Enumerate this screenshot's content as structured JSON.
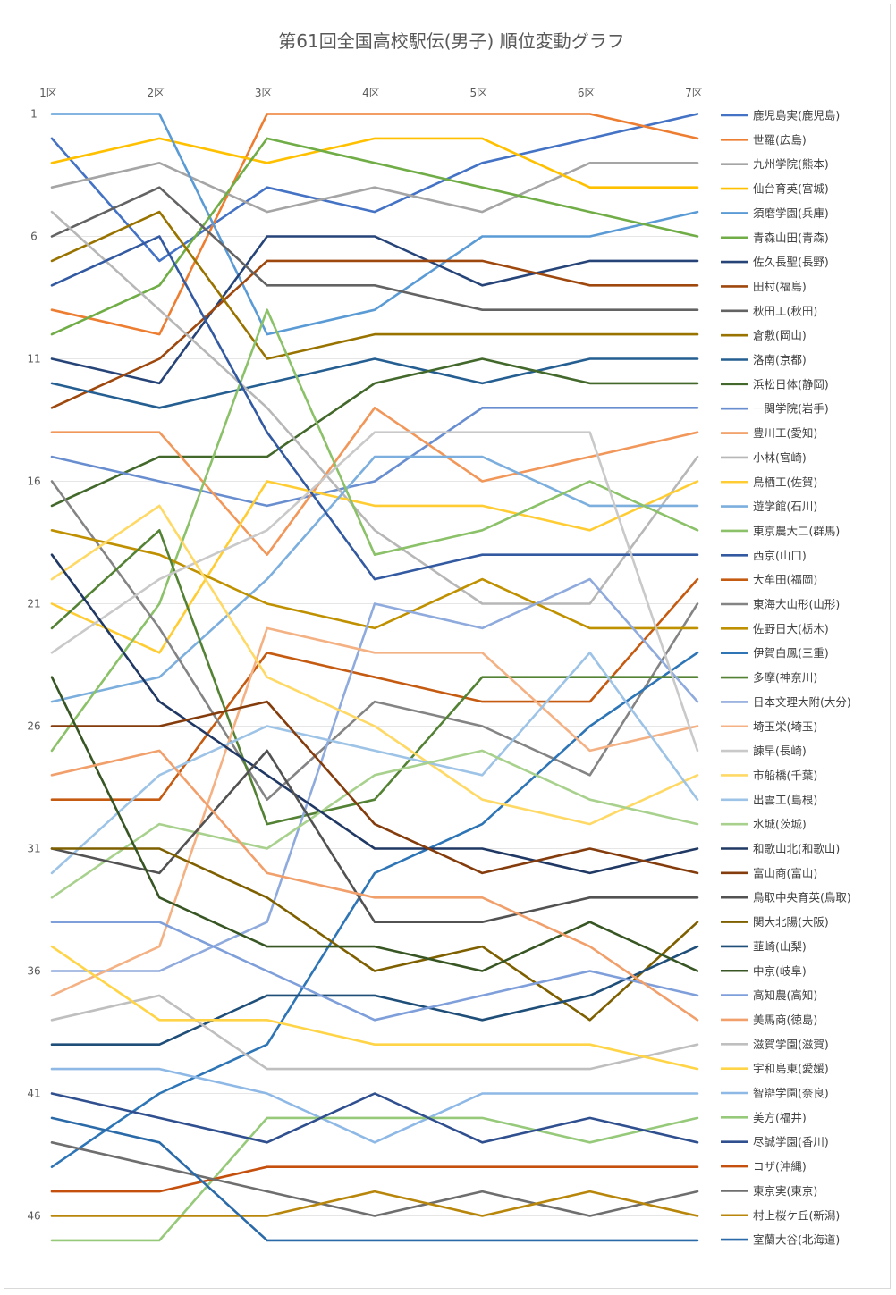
{
  "chart_data": {
    "type": "line",
    "title": "第61回全国高校駅伝(男子) 順位変動グラフ",
    "x": [
      "1区",
      "2区",
      "3区",
      "4区",
      "5区",
      "6区",
      "7区"
    ],
    "y_ticks": [
      "1",
      "6",
      "11",
      "16",
      "21",
      "26",
      "31",
      "36",
      "41",
      "46"
    ],
    "ylim": [
      1,
      47
    ],
    "y_reversed": true,
    "grid": true,
    "legend_position": "right",
    "series": [
      {
        "name": "鹿児島実(鹿児島)",
        "color": "#4472C4",
        "values": [
          2,
          7,
          4,
          5,
          3,
          2,
          1
        ]
      },
      {
        "name": "世羅(広島)",
        "color": "#ED7D31",
        "values": [
          9,
          10,
          1,
          1,
          1,
          1,
          2
        ]
      },
      {
        "name": "九州学院(熊本)",
        "color": "#A5A5A5",
        "values": [
          4,
          3,
          5,
          4,
          5,
          3,
          3
        ]
      },
      {
        "name": "仙台育英(宮城)",
        "color": "#FFC000",
        "values": [
          3,
          2,
          3,
          2,
          2,
          4,
          4
        ]
      },
      {
        "name": "須磨学園(兵庫)",
        "color": "#5B9BD5",
        "values": [
          1,
          1,
          10,
          9,
          6,
          6,
          5
        ]
      },
      {
        "name": "青森山田(青森)",
        "color": "#70AD47",
        "values": [
          10,
          8,
          2,
          3,
          4,
          5,
          6
        ]
      },
      {
        "name": "佐久長聖(長野)",
        "color": "#264478",
        "values": [
          11,
          12,
          6,
          6,
          8,
          7,
          7
        ]
      },
      {
        "name": "田村(福島)",
        "color": "#9E480E",
        "values": [
          13,
          11,
          7,
          7,
          7,
          8,
          8
        ]
      },
      {
        "name": "秋田工(秋田)",
        "color": "#636363",
        "values": [
          6,
          4,
          8,
          8,
          9,
          9,
          9
        ]
      },
      {
        "name": "倉敷(岡山)",
        "color": "#997300",
        "values": [
          7,
          5,
          11,
          10,
          10,
          10,
          10
        ]
      },
      {
        "name": "洛南(京都)",
        "color": "#255E91",
        "values": [
          12,
          13,
          12,
          11,
          12,
          11,
          11
        ]
      },
      {
        "name": "浜松日体(静岡)",
        "color": "#43682B",
        "values": [
          17,
          15,
          15,
          12,
          11,
          12,
          12
        ]
      },
      {
        "name": "一関学院(岩手)",
        "color": "#698ED0",
        "values": [
          15,
          16,
          17,
          16,
          13,
          13,
          13
        ]
      },
      {
        "name": "豊川工(愛知)",
        "color": "#F1975A",
        "values": [
          14,
          14,
          19,
          13,
          16,
          15,
          14
        ]
      },
      {
        "name": "小林(宮崎)",
        "color": "#B7B7B7",
        "values": [
          5,
          9,
          13,
          18,
          21,
          21,
          15
        ]
      },
      {
        "name": "鳥栖工(佐賀)",
        "color": "#FFCD33",
        "values": [
          21,
          23,
          16,
          17,
          17,
          18,
          16
        ]
      },
      {
        "name": "遊学館(石川)",
        "color": "#7CAFDD",
        "values": [
          25,
          24,
          20,
          15,
          15,
          17,
          17
        ]
      },
      {
        "name": "東京農大二(群馬)",
        "color": "#8BC168",
        "values": [
          27,
          21,
          9,
          19,
          18,
          16,
          18
        ]
      },
      {
        "name": "西京(山口)",
        "color": "#335AA1",
        "values": [
          8,
          6,
          14,
          20,
          19,
          19,
          19
        ]
      },
      {
        "name": "大牟田(福岡)",
        "color": "#C55A11",
        "values": [
          29,
          29,
          23,
          24,
          25,
          25,
          20
        ]
      },
      {
        "name": "東海大山形(山形)",
        "color": "#848484",
        "values": [
          16,
          22,
          29,
          25,
          26,
          28,
          21
        ]
      },
      {
        "name": "佐野日大(栃木)",
        "color": "#BF9000",
        "values": [
          18,
          19,
          21,
          22,
          20,
          22,
          22
        ]
      },
      {
        "name": "伊賀白鳳(三重)",
        "color": "#2E75B6",
        "values": [
          44,
          41,
          39,
          32,
          30,
          26,
          23
        ]
      },
      {
        "name": "多摩(神奈川)",
        "color": "#548235",
        "values": [
          22,
          18,
          30,
          29,
          24,
          24,
          24
        ]
      },
      {
        "name": "日本文理大附(大分)",
        "color": "#8FAADC",
        "values": [
          36,
          36,
          34,
          21,
          22,
          20,
          25
        ]
      },
      {
        "name": "埼玉栄(埼玉)",
        "color": "#F4B183",
        "values": [
          37,
          35,
          22,
          23,
          23,
          27,
          26
        ]
      },
      {
        "name": "諫早(長崎)",
        "color": "#C9C9C9",
        "values": [
          23,
          20,
          18,
          14,
          14,
          14,
          27
        ]
      },
      {
        "name": "市船橋(千葉)",
        "color": "#FFD966",
        "values": [
          20,
          17,
          24,
          26,
          29,
          30,
          28
        ]
      },
      {
        "name": "出雲工(島根)",
        "color": "#9DC3E6",
        "values": [
          32,
          28,
          26,
          27,
          28,
          23,
          29
        ]
      },
      {
        "name": "水城(茨城)",
        "color": "#A9D18E",
        "values": [
          33,
          30,
          31,
          28,
          27,
          29,
          30
        ]
      },
      {
        "name": "和歌山北(和歌山)",
        "color": "#203864",
        "values": [
          19,
          25,
          28,
          31,
          31,
          32,
          31
        ]
      },
      {
        "name": "富山商(富山)",
        "color": "#843C0C",
        "values": [
          26,
          26,
          25,
          30,
          32,
          31,
          32
        ]
      },
      {
        "name": "鳥取中央育英(鳥取)",
        "color": "#525252",
        "values": [
          31,
          32,
          27,
          34,
          34,
          33,
          33
        ]
      },
      {
        "name": "関大北陽(大阪)",
        "color": "#7F6000",
        "values": [
          31,
          31,
          33,
          36,
          35,
          38,
          34
        ]
      },
      {
        "name": "韮崎(山梨)",
        "color": "#1F4E79",
        "values": [
          39,
          39,
          37,
          37,
          38,
          37,
          35
        ]
      },
      {
        "name": "中京(岐阜)",
        "color": "#375623",
        "values": [
          24,
          33,
          35,
          35,
          36,
          34,
          36
        ]
      },
      {
        "name": "高知農(高知)",
        "color": "#7F9FDA",
        "values": [
          34,
          34,
          36,
          38,
          37,
          36,
          37
        ]
      },
      {
        "name": "美馬商(徳島)",
        "color": "#F19F6B",
        "values": [
          28,
          27,
          32,
          33,
          33,
          35,
          38
        ]
      },
      {
        "name": "滋賀学園(滋賀)",
        "color": "#BFBFBF",
        "values": [
          38,
          37,
          40,
          40,
          40,
          40,
          39
        ]
      },
      {
        "name": "宇和島東(愛媛)",
        "color": "#FFD447",
        "values": [
          35,
          38,
          38,
          39,
          39,
          39,
          40
        ]
      },
      {
        "name": "智辯学園(奈良)",
        "color": "#8EB8E5",
        "values": [
          40,
          40,
          41,
          43,
          41,
          41,
          41
        ]
      },
      {
        "name": "美方(福井)",
        "color": "#96C97A",
        "values": [
          47,
          47,
          42,
          42,
          42,
          43,
          42
        ]
      },
      {
        "name": "尽誠学園(香川)",
        "color": "#2F4F8F",
        "values": [
          41,
          42,
          43,
          41,
          43,
          42,
          43
        ]
      },
      {
        "name": "コザ(沖縄)",
        "color": "#C5500E",
        "values": [
          45,
          45,
          44,
          44,
          44,
          44,
          44
        ]
      },
      {
        "name": "東京実(東京)",
        "color": "#6E6E6E",
        "values": [
          43,
          44,
          45,
          46,
          45,
          46,
          45
        ]
      },
      {
        "name": "村上桜ケ丘(新潟)",
        "color": "#B8860B",
        "values": [
          46,
          46,
          46,
          45,
          46,
          45,
          46
        ]
      },
      {
        "name": "室蘭大谷(北海道)",
        "color": "#2A6AA8",
        "values": [
          42,
          43,
          47,
          47,
          47,
          47,
          47
        ]
      }
    ]
  }
}
